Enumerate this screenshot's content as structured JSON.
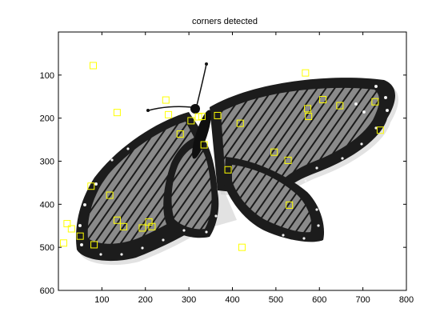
{
  "chart_data": {
    "type": "scatter",
    "title": "corners detected",
    "xlabel": "",
    "ylabel": "",
    "xlim": [
      0,
      800
    ],
    "ylim": [
      0,
      600
    ],
    "y_reversed": true,
    "grid": false,
    "background_image": "monarch-butterfly-grayscale",
    "marker": "square",
    "marker_color": "#ffff00",
    "x_ticks": [
      100,
      200,
      300,
      400,
      500,
      600,
      700,
      800
    ],
    "y_ticks": [
      100,
      200,
      300,
      400,
      500,
      600
    ],
    "points": [
      {
        "x": 80,
        "y": 78
      },
      {
        "x": 135,
        "y": 187
      },
      {
        "x": 247,
        "y": 158
      },
      {
        "x": 253,
        "y": 192
      },
      {
        "x": 280,
        "y": 237
      },
      {
        "x": 305,
        "y": 206
      },
      {
        "x": 322,
        "y": 197
      },
      {
        "x": 330,
        "y": 196
      },
      {
        "x": 335,
        "y": 262
      },
      {
        "x": 366,
        "y": 194
      },
      {
        "x": 418,
        "y": 212
      },
      {
        "x": 390,
        "y": 320
      },
      {
        "x": 496,
        "y": 279
      },
      {
        "x": 528,
        "y": 298
      },
      {
        "x": 531,
        "y": 402
      },
      {
        "x": 568,
        "y": 95
      },
      {
        "x": 573,
        "y": 178
      },
      {
        "x": 575,
        "y": 196
      },
      {
        "x": 608,
        "y": 157
      },
      {
        "x": 647,
        "y": 171
      },
      {
        "x": 728,
        "y": 162
      },
      {
        "x": 740,
        "y": 228
      },
      {
        "x": 75,
        "y": 358
      },
      {
        "x": 118,
        "y": 379
      },
      {
        "x": 135,
        "y": 437
      },
      {
        "x": 150,
        "y": 452
      },
      {
        "x": 193,
        "y": 455
      },
      {
        "x": 208,
        "y": 441
      },
      {
        "x": 215,
        "y": 452
      },
      {
        "x": 20,
        "y": 445
      },
      {
        "x": 30,
        "y": 457
      },
      {
        "x": 50,
        "y": 474
      },
      {
        "x": 12,
        "y": 490
      },
      {
        "x": 82,
        "y": 494
      },
      {
        "x": 422,
        "y": 500
      }
    ]
  }
}
